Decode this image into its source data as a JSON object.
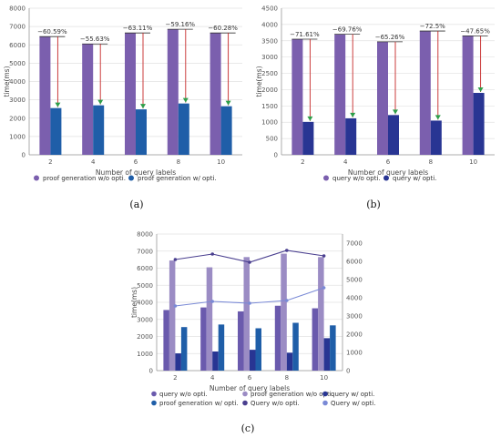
{
  "colors": {
    "a_without": "#7b5fae",
    "a_with": "#1f5ea8",
    "b_without": "#7b5fae",
    "b_with": "#283593",
    "c_query_without": "#6a5aad",
    "c_proof_without": "#9b8cc4",
    "c_query_with": "#283593",
    "c_proof_with": "#1f5ea8",
    "c_line_without": "#4a3f8f",
    "c_line_with": "#7a8ad6",
    "arrow_red": "#c62828",
    "arrow_green": "#2e9e4a"
  },
  "chart_data": [
    {
      "type": "bar",
      "panel_label": "(a)",
      "categories": [
        "2",
        "4",
        "6",
        "8",
        "10"
      ],
      "xlabel": "Number of query labels",
      "ylabel": "time(ms)",
      "ylim": [
        0,
        8000
      ],
      "yticks": [
        0,
        1000,
        2000,
        3000,
        4000,
        5000,
        6000,
        7000,
        8000
      ],
      "legend_position": "bottom",
      "series": [
        {
          "name": "proof generation w/o opti.",
          "values": [
            6450,
            6050,
            6650,
            6850,
            6650
          ]
        },
        {
          "name": "proof generation w/ opti.",
          "values": [
            2550,
            2700,
            2480,
            2800,
            2650
          ]
        }
      ],
      "annotations": [
        "−60.59%",
        "−55.63%",
        "−63.11%",
        "−59.16%",
        "−60.28%"
      ]
    },
    {
      "type": "bar",
      "panel_label": "(b)",
      "categories": [
        "2",
        "4",
        "6",
        "8",
        "10"
      ],
      "xlabel": "Number of query labels",
      "ylabel": "time(ms)",
      "ylim": [
        0,
        4500
      ],
      "yticks": [
        0,
        500,
        1000,
        1500,
        2000,
        2500,
        3000,
        3500,
        4000,
        4500
      ],
      "legend_position": "bottom",
      "series": [
        {
          "name": "query w/o opti.",
          "values": [
            3550,
            3700,
            3470,
            3800,
            3650
          ]
        },
        {
          "name": "query w/ opti.",
          "values": [
            1010,
            1120,
            1220,
            1050,
            1900
          ]
        }
      ],
      "annotations": [
        "−71.61%",
        "−69.76%",
        "−65.26%",
        "−72.5%",
        "−47.65%"
      ]
    },
    {
      "type": "bar",
      "panel_label": "(c)",
      "categories": [
        "2",
        "4",
        "6",
        "8",
        "10"
      ],
      "xlabel": "Number of query labels",
      "ylabel": "time(ms)",
      "ylim": [
        0,
        8000
      ],
      "yticks": [
        0,
        1000,
        2000,
        3000,
        4000,
        5000,
        6000,
        7000,
        8000
      ],
      "y2lim": [
        0,
        7500
      ],
      "y2ticks": [
        0,
        1000,
        2000,
        3000,
        4000,
        5000,
        6000,
        7000
      ],
      "legend_position": "bottom",
      "series": [
        {
          "name": "query w/o opti.",
          "kind": "bar",
          "values": [
            3550,
            3700,
            3470,
            3800,
            3650
          ]
        },
        {
          "name": "proof generation w/o opti.",
          "kind": "bar",
          "values": [
            6450,
            6050,
            6650,
            6850,
            6650
          ]
        },
        {
          "name": "query w/ opti.",
          "kind": "bar",
          "values": [
            1010,
            1120,
            1220,
            1050,
            1900
          ]
        },
        {
          "name": "proof generation w/ opti.",
          "kind": "bar",
          "values": [
            2550,
            2700,
            2480,
            2800,
            2650
          ]
        },
        {
          "name": "Query w/o opti.",
          "kind": "line",
          "axis": "right",
          "values": [
            6100,
            6400,
            5950,
            6600,
            6300
          ]
        },
        {
          "name": "Query w/ opti.",
          "kind": "line",
          "axis": "right",
          "values": [
            3550,
            3800,
            3700,
            3850,
            4550
          ]
        }
      ]
    }
  ]
}
